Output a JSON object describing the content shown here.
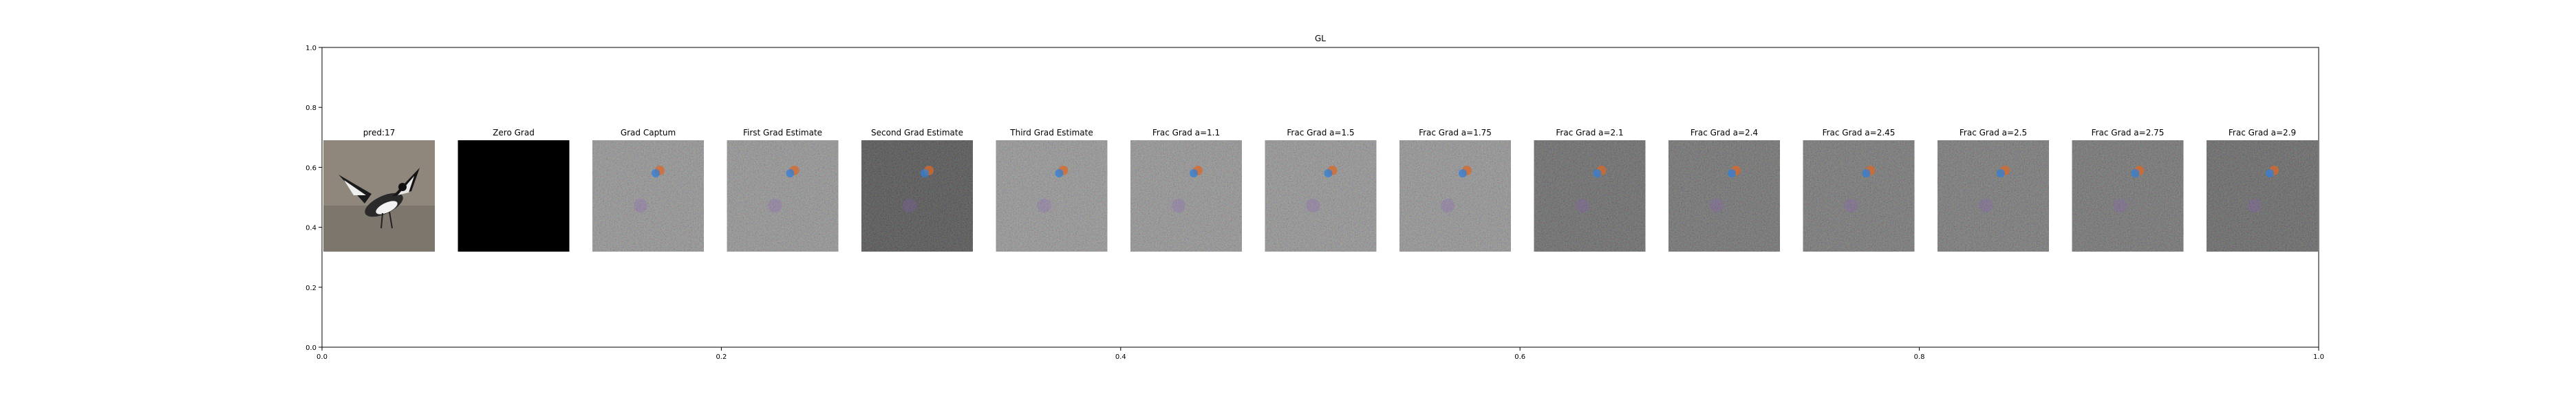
{
  "chart_data": {
    "type": "image_grid",
    "title": "GL",
    "xlim": [
      0.0,
      1.0
    ],
    "ylim": [
      0.0,
      1.0
    ],
    "x_ticks": [
      "0.0",
      "0.2",
      "0.4",
      "0.6",
      "0.8",
      "1.0"
    ],
    "y_ticks": [
      "0.0",
      "0.2",
      "0.4",
      "0.6",
      "0.8",
      "1.0"
    ],
    "grid": false,
    "panels": [
      {
        "title": "pred:17",
        "kind": "photo"
      },
      {
        "title": "Zero Grad",
        "kind": "black"
      },
      {
        "title": "Grad Captum",
        "kind": "noise",
        "base": "#8a8a8a"
      },
      {
        "title": "First Grad Estimate",
        "kind": "noise",
        "base": "#8a8a8a"
      },
      {
        "title": "Second Grad Estimate",
        "kind": "noise",
        "base": "#3e3e3e"
      },
      {
        "title": "Third Grad Estimate",
        "kind": "noise",
        "base": "#8c8c8c"
      },
      {
        "title": "Frac Grad a=1.1",
        "kind": "noise",
        "base": "#8a8a8a"
      },
      {
        "title": "Frac Grad a=1.5",
        "kind": "noise",
        "base": "#8a8a8a"
      },
      {
        "title": "Frac Grad a=1.75",
        "kind": "noise",
        "base": "#8a8a8a"
      },
      {
        "title": "Frac Grad a=2.1",
        "kind": "noise",
        "base": "#5a5a5a"
      },
      {
        "title": "Frac Grad a=2.4",
        "kind": "noise",
        "base": "#626262"
      },
      {
        "title": "Frac Grad a=2.45",
        "kind": "noise",
        "base": "#686868"
      },
      {
        "title": "Frac Grad a=2.5",
        "kind": "noise",
        "base": "#6a6a6a"
      },
      {
        "title": "Frac Grad a=2.75",
        "kind": "noise",
        "base": "#646464"
      },
      {
        "title": "Frac Grad a=2.9",
        "kind": "noise",
        "base": "#565656"
      }
    ]
  }
}
